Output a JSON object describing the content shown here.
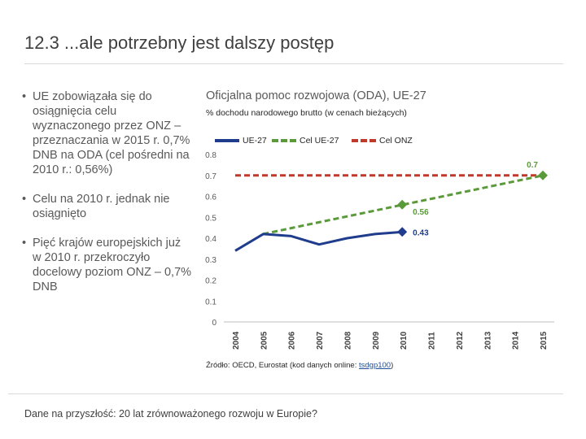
{
  "slide": {
    "title": "12.3 ...ale potrzebny jest dalszy postęp",
    "bullets": [
      "UE zobowiązała się do osiągnięcia celu wyznaczonego przez ONZ – przeznaczania w 2015 r. 0,7% DNB na ODA (cel pośredni na 2010 r.: 0,56%)",
      "Celu na 2010 r. jednak nie osiągnięto",
      "Pięć krajów europejskich już w 2010 r. przekroczyło docelowy poziom ONZ – 0,7% DNB"
    ],
    "footer": "Dane na przyszłość: 20 lat zrównoważonego rozwoju w Europie?"
  },
  "colors": {
    "eu27": "#1f3d8c",
    "target_eu": "#5a9a3a",
    "target_un": "#c0392b",
    "data_label_eu": "#1f3d8c",
    "data_label_target": "#5a9a3a"
  },
  "chart_data": {
    "type": "line",
    "title": "Oficjalna pomoc rozwojowa (ODA), UE-27",
    "subtitle": "% dochodu narodowego brutto (w cenach bieżących)",
    "source_prefix": "Źródło: OECD, Eurostat (kod danych online: ",
    "source_code": "tsdgp100",
    "source_suffix": ")",
    "x": [
      "2004",
      "2005",
      "2006",
      "2007",
      "2008",
      "2009",
      "2010",
      "2011",
      "2012",
      "2013",
      "2014",
      "2015"
    ],
    "ylim": [
      0,
      0.8
    ],
    "yticks": [
      "0",
      "0.1",
      "0.2",
      "0.3",
      "0.4",
      "0.5",
      "0.6",
      "0.7",
      "0.8"
    ],
    "series": [
      {
        "name": "UE-27",
        "style": "solid",
        "values": [
          0.34,
          0.42,
          0.41,
          0.37,
          0.4,
          0.42,
          0.43,
          null,
          null,
          null,
          null,
          null
        ],
        "end_label": "0.43"
      },
      {
        "name": "Cel UE-27",
        "style": "dashed",
        "values": [
          null,
          0.42,
          0.448,
          0.476,
          0.504,
          0.532,
          0.56,
          0.588,
          0.616,
          0.644,
          0.672,
          0.7
        ],
        "mid_label": "0.56",
        "end_label": "0.7"
      },
      {
        "name": "Cel ONZ",
        "style": "dashed",
        "values": [
          0.7,
          0.7,
          0.7,
          0.7,
          0.7,
          0.7,
          0.7,
          0.7,
          0.7,
          0.7,
          0.7,
          0.7
        ]
      }
    ]
  }
}
